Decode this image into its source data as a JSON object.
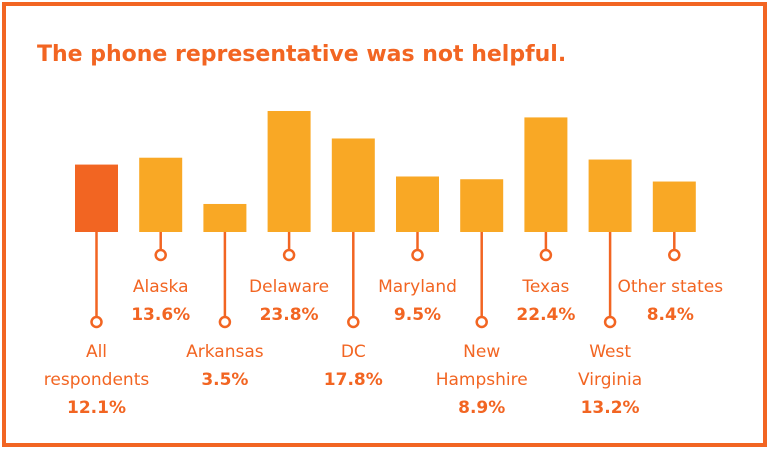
{
  "chart_data": {
    "type": "bar",
    "title": "The phone representative was not helpful.",
    "categories": [
      [
        "All",
        "respondents"
      ],
      [
        "Alaska"
      ],
      [
        "Arkansas"
      ],
      [
        "Delaware"
      ],
      [
        "DC"
      ],
      [
        "Maryland"
      ],
      [
        "New",
        "Hampshire"
      ],
      [
        "Texas"
      ],
      [
        "West",
        "Virginia"
      ],
      [
        "Other states"
      ]
    ],
    "values": [
      12.1,
      13.6,
      3.5,
      23.8,
      17.8,
      9.5,
      8.9,
      22.4,
      13.2,
      8.4
    ],
    "value_labels": [
      "12.1%",
      "13.6%",
      "3.5%",
      "23.8%",
      "17.8%",
      "9.5%",
      "8.9%",
      "22.4%",
      "13.2%",
      "8.4%"
    ],
    "colors": [
      "#f26522",
      "#f9a825",
      "#f9a825",
      "#f9a825",
      "#f9a825",
      "#f9a825",
      "#f9a825",
      "#f9a825",
      "#f9a825",
      "#f9a825"
    ],
    "accent": "#f26522"
  }
}
